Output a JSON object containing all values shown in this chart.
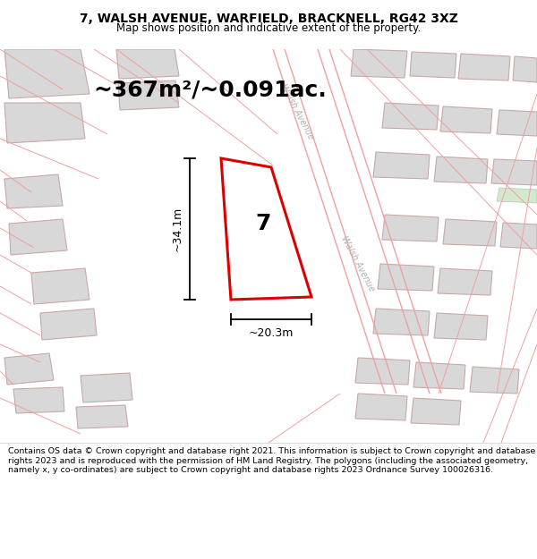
{
  "title_line1": "7, WALSH AVENUE, WARFIELD, BRACKNELL, RG42 3XZ",
  "title_line2": "Map shows position and indicative extent of the property.",
  "area_text": "~367m²/~0.091ac.",
  "width_label": "~20.3m",
  "height_label": "~34.1m",
  "number_label": "7",
  "footer_text": "Contains OS data © Crown copyright and database right 2021. This information is subject to Crown copyright and database rights 2023 and is reproduced with the permission of HM Land Registry. The polygons (including the associated geometry, namely x, y co-ordinates) are subject to Crown copyright and database rights 2023 Ordnance Survey 100026316.",
  "bg_color": "#f8f8f8",
  "road_color": "#f0a0a0",
  "building_fill": "#d8d8d8",
  "building_outline": "#c8a8a8",
  "plot_outline_color": "#dd0000",
  "road_label_color": "#b0b0b0",
  "dimension_color": "#000000",
  "header_bg": "#ffffff",
  "footer_bg": "#ffffff",
  "title_fontsize": 10,
  "subtitle_fontsize": 8.5,
  "area_fontsize": 18,
  "number_fontsize": 18,
  "dim_fontsize": 9,
  "footer_fontsize": 6.8
}
